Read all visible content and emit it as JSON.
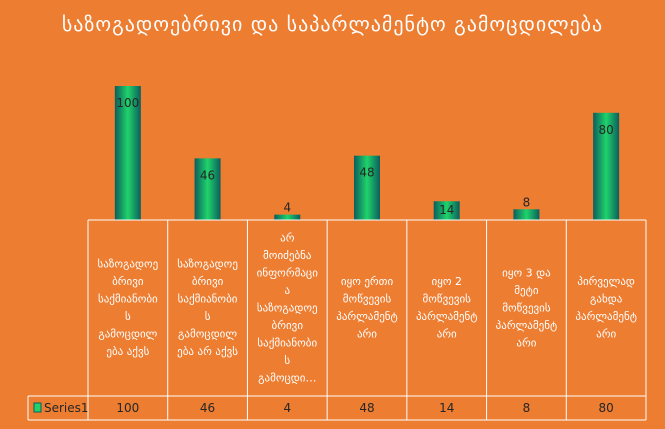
{
  "chart_data": {
    "type": "bar",
    "title": "საზოგადოებრივი და საპარლამენტო გამოცდილება",
    "categories": [
      "საზოგადოებრივი საქმიანობის გამოცდილება აქვს",
      "საზოგადოებრივი საქმიანობის გამოცდილება არ აქვს",
      "არ მოიძებნა ინფორმაცია საზოგადოებრივი საქმიანობის გამოცდილების შესახებ",
      "იყო ერთი მოწვევის პარლამენტარი",
      "იყო 2 მოწვევის პარლამენტარი",
      "იყო 3 და მეტი მოწვევის პარლამენტარი",
      "პირველად გახდა პარლამენტარი"
    ],
    "category_lines": [
      [
        "საზოგადოე",
        "ბრივი",
        "საქმიანობი",
        "ს",
        "გამოცდილ",
        "ება აქვს"
      ],
      [
        "საზოგადოე",
        "ბრივი",
        "საქმიანობი",
        "ს",
        "გამოცდილ",
        "ება არ აქვს"
      ],
      [
        "არ",
        "მოიძებნა",
        "ინფორმაცი",
        "ა",
        "საზოგადოე",
        "ბრივი",
        "საქმიანობი",
        "ს",
        "გამოცდი…"
      ],
      [
        "იყო ერთი",
        "მოწვევის",
        "პარლამენტ",
        "არი"
      ],
      [
        "იყო 2",
        "მოწვევის",
        "პარლამენტ",
        "არი"
      ],
      [
        "იყო 3 და",
        "მეტი",
        "მოწვევის",
        "პარლამენტ",
        "არი"
      ],
      [
        "პირველად",
        "გახდა",
        "პარლამენტ",
        "არი"
      ]
    ],
    "series": [
      {
        "name": "Series1",
        "values": [
          100,
          46,
          4,
          48,
          14,
          8,
          80
        ]
      }
    ],
    "ylim": [
      0,
      100
    ],
    "grid": false,
    "legend": "data-table",
    "colors": {
      "bar_edge": "#0B5E5E",
      "bar_center": "#1FD36A",
      "table_line": "#ffffff",
      "background": "#ED7D31"
    }
  }
}
